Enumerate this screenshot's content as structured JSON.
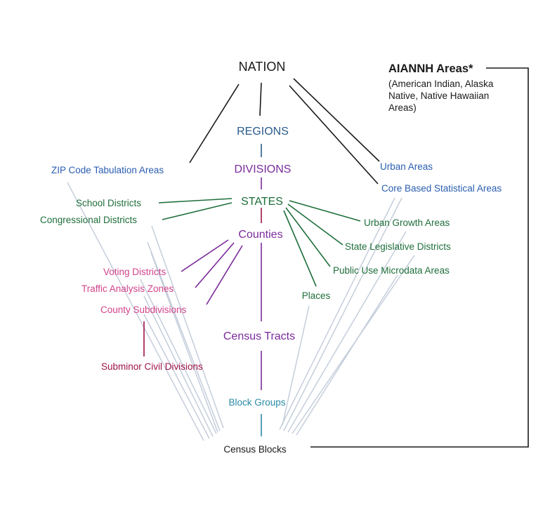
{
  "nodes": {
    "nation": "NATION",
    "regions": "REGIONS",
    "divisions": "DIVISIONS",
    "states": "STATES",
    "counties": "Counties",
    "census_tracts": "Census Tracts",
    "block_groups": "Block Groups",
    "census_blocks": "Census Blocks",
    "zcta": "ZIP Code Tabulation Areas",
    "school_districts": "School Districts",
    "congressional_districts": "Congressional Districts",
    "voting_districts": "Voting Districts",
    "traffic_analysis_zones": "Traffic Analysis Zones",
    "county_subdivisions": "County Subdivisions",
    "subminor_civil_divisions": "Subminor Civil Divisions",
    "places": "Places",
    "urban_areas": "Urban Areas",
    "cbsa": "Core Based Statistical Areas",
    "urban_growth_areas": "Urban Growth Areas",
    "state_legislative_districts": "State Legislative Districts",
    "puma": "Public Use Microdata Areas",
    "aiannh_title": "AIANNH Areas*",
    "aiannh_desc_1": "(American Indian, Alaska",
    "aiannh_desc_2": "Native, Native Hawaiian",
    "aiannh_desc_3": "Areas)"
  },
  "colors": {
    "black": "#1a1a1a",
    "navy": "#2a5a8a",
    "blue": "#2a5db0",
    "purple": "#7a2a9a",
    "green": "#1e6e3a",
    "pink": "#d1438a",
    "maroon": "#a0144a",
    "teal": "#2a8aa6",
    "gray_line": "#c5cedb"
  }
}
